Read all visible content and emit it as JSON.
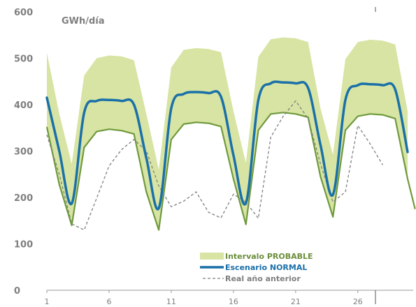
{
  "chart_data": {
    "type": "area",
    "ylabel": "GWh/día",
    "ylim": [
      0,
      600
    ],
    "yticks": [
      0,
      100,
      200,
      300,
      400,
      500,
      600
    ],
    "xlim": [
      1,
      30
    ],
    "xticks": [
      1,
      6,
      11,
      16,
      21,
      26
    ],
    "grid": false,
    "legend_position": "bottom-center",
    "x": [
      1,
      2,
      3,
      4,
      5,
      6,
      7,
      8,
      9,
      10,
      11,
      12,
      13,
      14,
      15,
      16,
      17,
      18,
      19,
      20,
      21,
      22,
      23,
      24,
      25,
      26,
      27,
      28,
      29,
      30
    ],
    "series": [
      {
        "name": "Intervalo PROBABLE",
        "kind": "band",
        "color": "#d7e4a3",
        "lower": [
          352,
          228,
          140,
          308,
          342,
          347,
          344,
          337,
          212,
          130,
          325,
          358,
          362,
          360,
          353,
          240,
          142,
          345,
          380,
          383,
          380,
          373,
          245,
          158,
          345,
          375,
          380,
          378,
          370,
          240
        ],
        "upper": [
          512,
          380,
          272,
          463,
          500,
          506,
          504,
          496,
          380,
          260,
          480,
          518,
          522,
          520,
          513,
          386,
          274,
          503,
          541,
          545,
          543,
          535,
          392,
          292,
          498,
          535,
          540,
          538,
          530,
          386
        ]
      },
      {
        "name": "Escenario NORMAL",
        "kind": "line",
        "color": "#1a70a8",
        "values": [
          415,
          300,
          187,
          383,
          408,
          410,
          408,
          400,
          285,
          177,
          392,
          423,
          427,
          425,
          417,
          291,
          188,
          410,
          446,
          448,
          446,
          436,
          313,
          206,
          410,
          442,
          444,
          442,
          433,
          298
        ]
      },
      {
        "name": "Real año anterior",
        "kind": "dashed",
        "color": "#808080",
        "values": [
          335,
          250,
          143,
          130,
          198,
          268,
          303,
          325,
          300,
          225,
          180,
          192,
          212,
          168,
          156,
          207,
          190,
          155,
          330,
          375,
          408,
          370,
          272,
          190,
          212,
          355,
          315,
          270,
          null,
          null
        ]
      }
    ],
    "extra": {
      "lower_tail": 175
    }
  }
}
